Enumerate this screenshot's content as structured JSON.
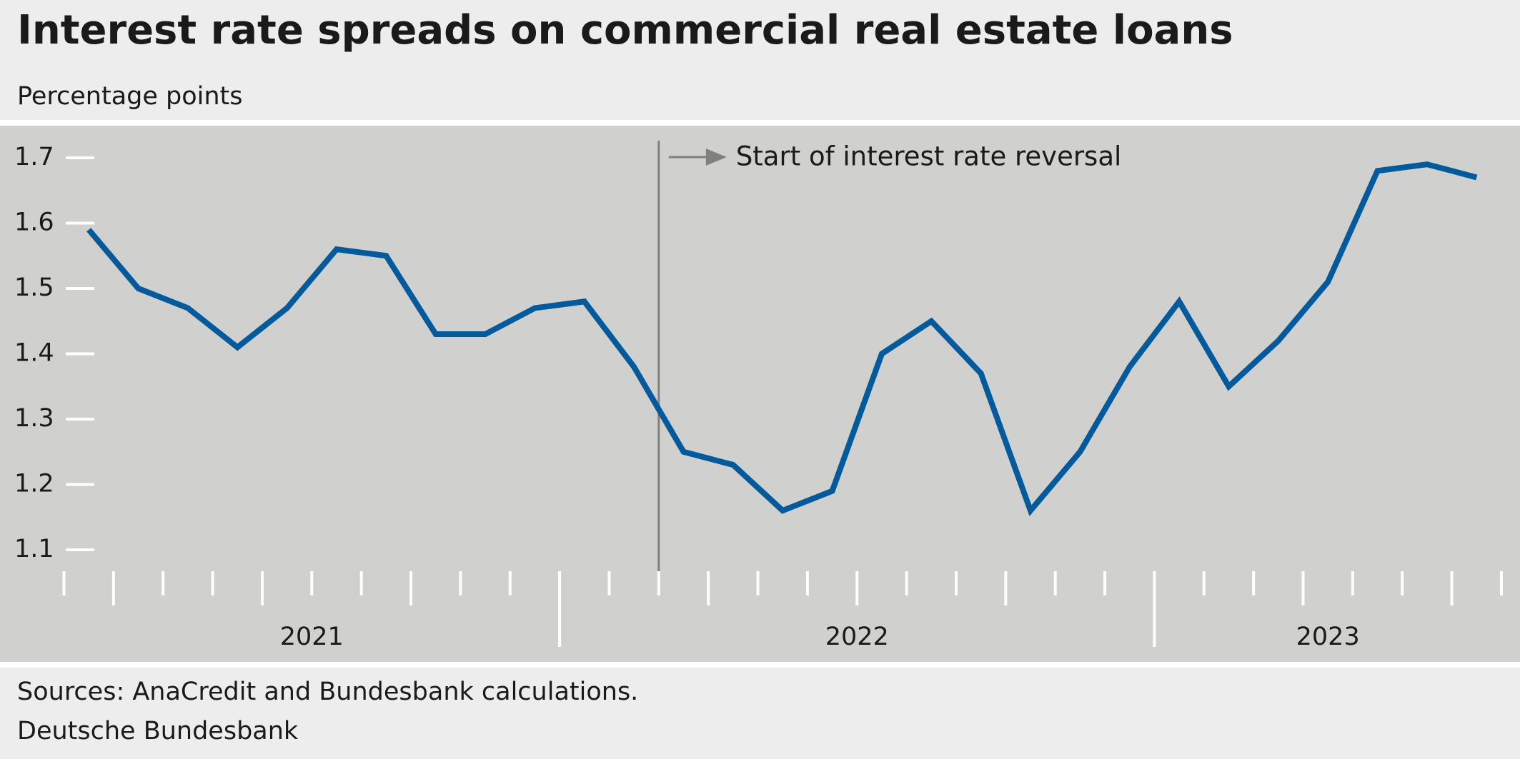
{
  "chart_data": {
    "type": "line",
    "title": "Interest rate spreads on commercial real estate loans",
    "subtitle": "Percentage points",
    "source": "Sources: AnaCredit and Bundesbank calculations.",
    "publisher": "Deutsche Bundesbank",
    "categories": [
      null,
      null,
      null,
      null,
      null,
      null,
      null,
      null,
      null,
      null,
      null,
      null,
      null,
      null,
      null,
      null,
      null,
      null,
      null,
      null,
      null,
      null,
      null,
      null,
      null,
      null,
      null,
      null,
      null
    ],
    "year_groups": [
      {
        "label": "2021",
        "span": 10
      },
      {
        "label": "2022",
        "span": 12
      },
      {
        "label": "2023",
        "span": 7
      }
    ],
    "series": [
      {
        "name": "Interest rate spread",
        "color": "#005a9c",
        "values": [
          1.59,
          1.5,
          1.47,
          1.41,
          1.47,
          1.56,
          1.55,
          1.43,
          1.43,
          1.47,
          1.48,
          1.38,
          1.25,
          1.23,
          1.16,
          1.19,
          1.4,
          1.45,
          1.37,
          1.16,
          1.25,
          1.38,
          1.48,
          1.35,
          1.42,
          1.51,
          1.68,
          1.69,
          1.67
        ]
      }
    ],
    "ylim": [
      1.1,
      1.7
    ],
    "yticks": [
      1.1,
      1.2,
      1.3,
      1.4,
      1.5,
      1.6,
      1.7
    ],
    "grid": false,
    "annotation": {
      "text": "Start of interest rate reversal",
      "after_index": 11
    }
  }
}
